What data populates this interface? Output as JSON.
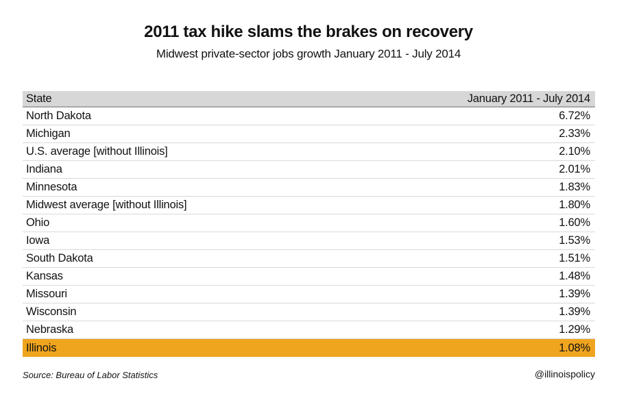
{
  "header": {
    "title": "2011 tax hike slams the brakes on recovery",
    "subtitle": "Midwest private-sector jobs growth January 2011 - July 2014"
  },
  "table": {
    "columns": [
      "State",
      "January 2011 - July 2014"
    ],
    "rows": [
      {
        "state": "North Dakota",
        "value": "6.72%",
        "highlight": false
      },
      {
        "state": "Michigan",
        "value": "2.33%",
        "highlight": false
      },
      {
        "state": "U.S. average [without Illinois]",
        "value": "2.10%",
        "highlight": false
      },
      {
        "state": "Indiana",
        "value": "2.01%",
        "highlight": false
      },
      {
        "state": "Minnesota",
        "value": "1.83%",
        "highlight": false
      },
      {
        "state": "Midwest average [without Illinois]",
        "value": "1.80%",
        "highlight": false
      },
      {
        "state": "Ohio",
        "value": "1.60%",
        "highlight": false
      },
      {
        "state": "Iowa",
        "value": "1.53%",
        "highlight": false
      },
      {
        "state": "South Dakota",
        "value": "1.51%",
        "highlight": false
      },
      {
        "state": "Kansas",
        "value": "1.48%",
        "highlight": false
      },
      {
        "state": "Missouri",
        "value": "1.39%",
        "highlight": false
      },
      {
        "state": "Wisconsin",
        "value": "1.39%",
        "highlight": false
      },
      {
        "state": "Nebraska",
        "value": "1.29%",
        "highlight": false
      },
      {
        "state": "Illinois",
        "value": "1.08%",
        "highlight": true
      }
    ],
    "colors": {
      "header_bg": "#d7d7d7",
      "header_border": "#a8a8a8",
      "row_border": "#d9d9d9",
      "highlight_bg": "#f0a51e",
      "text": "#111111"
    }
  },
  "footer": {
    "source": "Source: Bureau of Labor Statistics",
    "handle": "@illinoispolicy"
  },
  "chart_data": {
    "type": "table",
    "title": "2011 tax hike slams the brakes on recovery",
    "subtitle": "Midwest private-sector jobs growth January 2011 - July 2014",
    "columns": [
      "State",
      "January 2011 - July 2014"
    ],
    "categories": [
      "North Dakota",
      "Michigan",
      "U.S. average [without Illinois]",
      "Indiana",
      "Minnesota",
      "Midwest average [without Illinois]",
      "Ohio",
      "Iowa",
      "South Dakota",
      "Kansas",
      "Missouri",
      "Wisconsin",
      "Nebraska",
      "Illinois"
    ],
    "values": [
      6.72,
      2.33,
      2.1,
      2.01,
      1.83,
      1.8,
      1.6,
      1.53,
      1.51,
      1.48,
      1.39,
      1.39,
      1.29,
      1.08
    ],
    "value_unit": "percent",
    "highlighted_row": "Illinois",
    "highlight_color": "#f0a51e",
    "sort_order": "descending",
    "source": "Source: Bureau of Labor Statistics",
    "attribution": "@illinoispolicy"
  }
}
